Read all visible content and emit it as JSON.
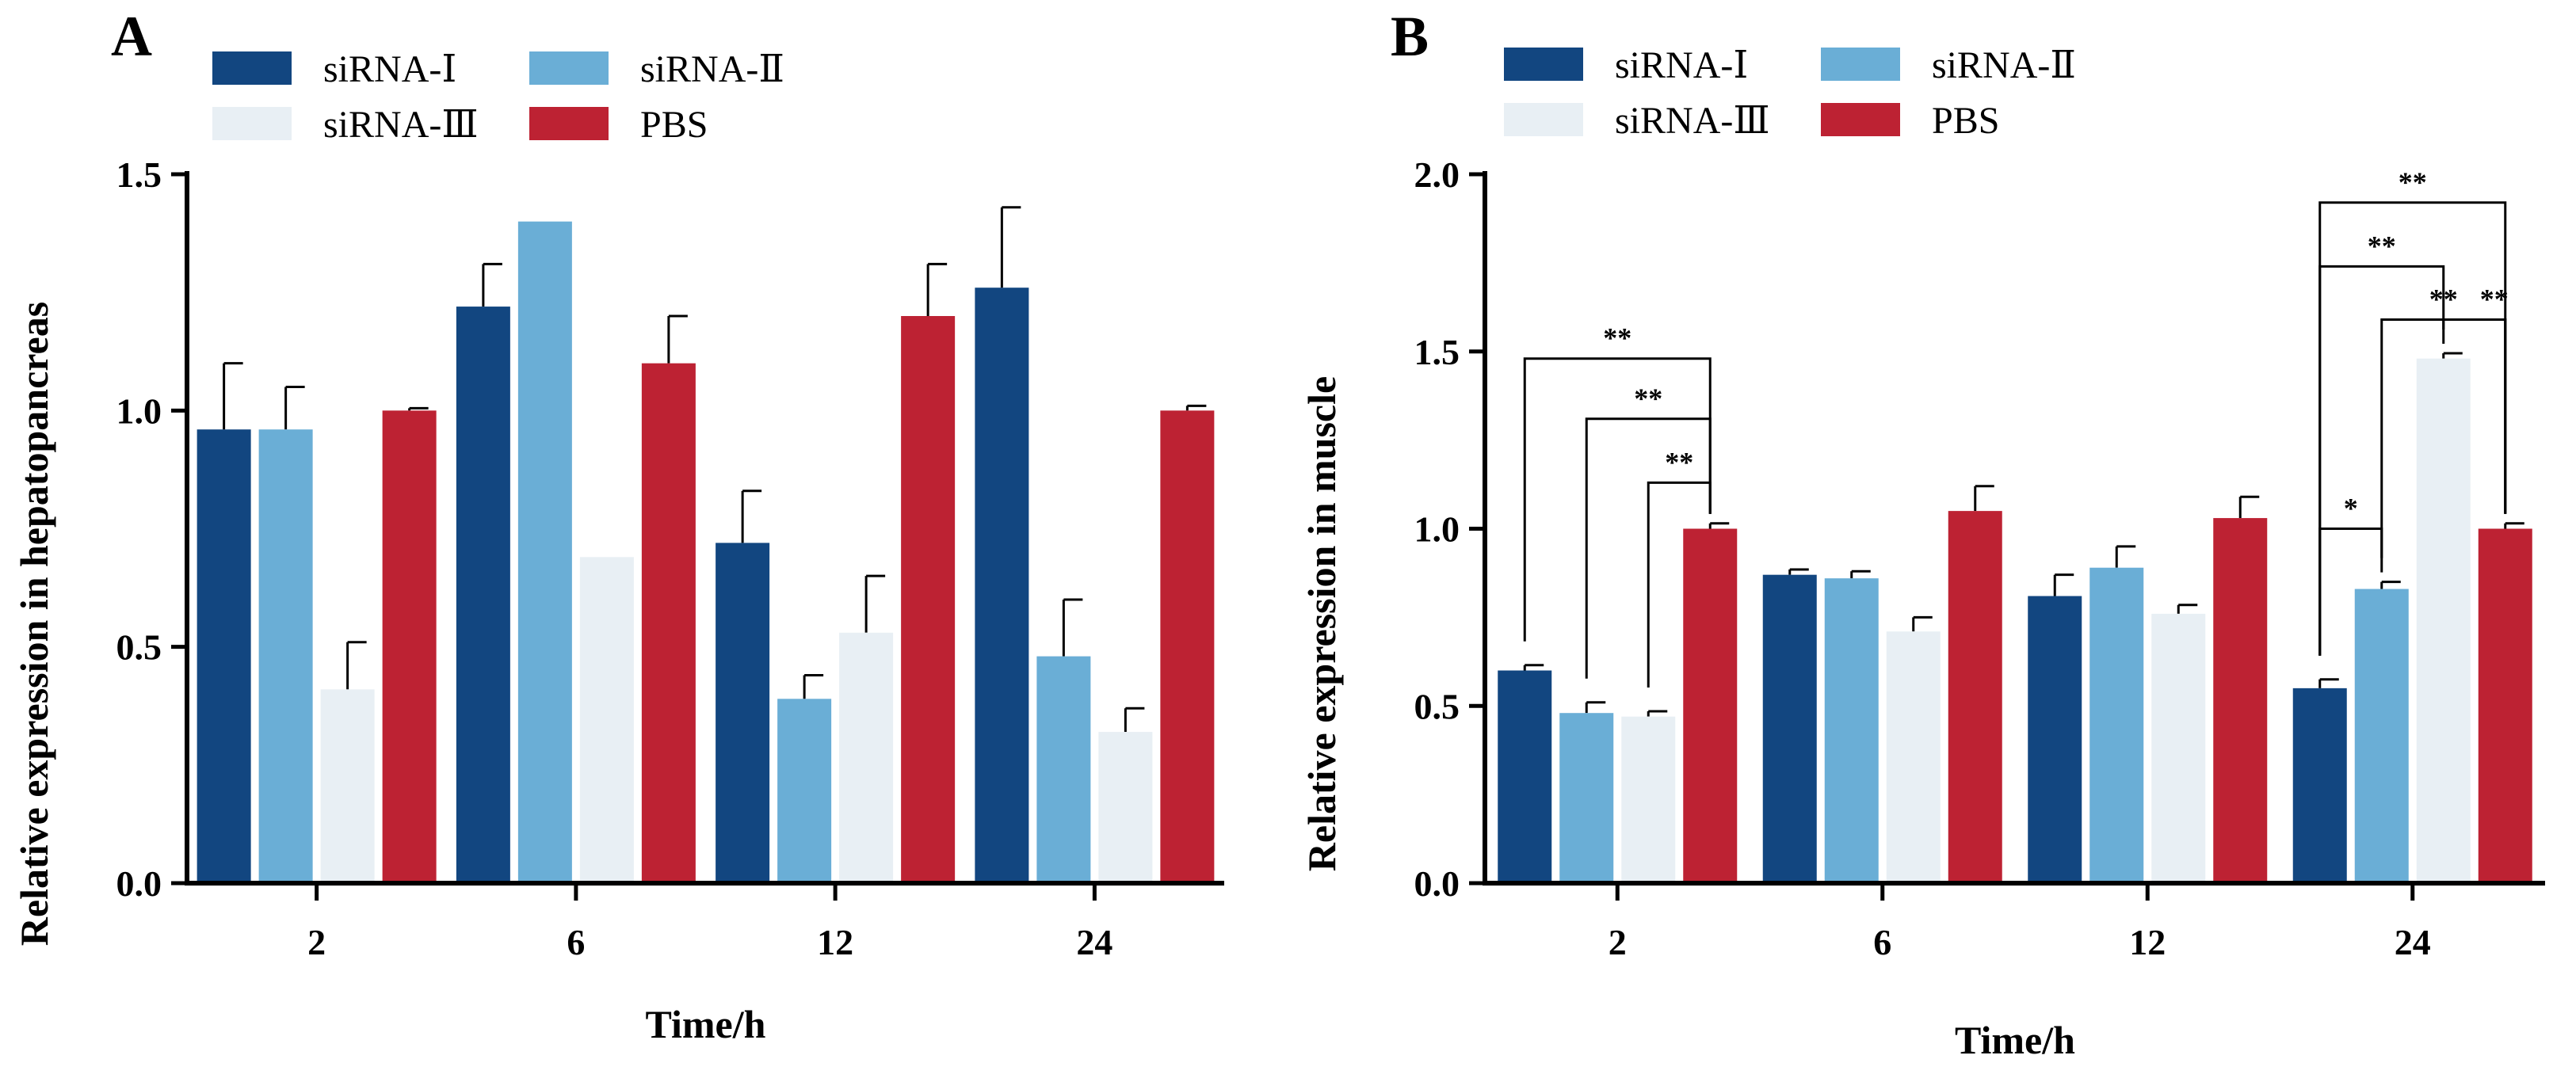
{
  "colors": {
    "siRNA-I": "#124680",
    "siRNA-II": "#6aaed6",
    "siRNA-III": "#e8eff4",
    "PBS": "#bd2233"
  },
  "chart_data": [
    {
      "panel": "A",
      "type": "bar",
      "xlabel": "Time/h",
      "ylabel": "Relative expression in hepatopancreas",
      "ylim": [
        0,
        1.5
      ],
      "yticks": [
        "0.0",
        "0.5",
        "1.0",
        "1.5"
      ],
      "categories": [
        "2",
        "6",
        "12",
        "24"
      ],
      "legend": [
        "siRNA-Ⅰ",
        "siRNA-Ⅱ",
        "siRNA-Ⅲ",
        "PBS"
      ],
      "series": [
        {
          "name": "siRNA-Ⅰ",
          "values": [
            0.96,
            1.22,
            0.72,
            1.26
          ],
          "errors": [
            0.14,
            0.09,
            0.11,
            0.17
          ]
        },
        {
          "name": "siRNA-Ⅱ",
          "values": [
            0.96,
            1.4,
            0.39,
            0.48
          ],
          "errors": [
            0.09,
            0.0,
            0.05,
            0.12
          ]
        },
        {
          "name": "siRNA-Ⅲ",
          "values": [
            0.41,
            0.69,
            0.53,
            0.32
          ],
          "errors": [
            0.1,
            0.0,
            0.12,
            0.05
          ]
        },
        {
          "name": "PBS",
          "values": [
            1.0,
            1.1,
            1.2,
            1.0
          ],
          "errors": [
            0.005,
            0.1,
            0.11,
            0.01
          ]
        }
      ],
      "significance": []
    },
    {
      "panel": "B",
      "type": "bar",
      "xlabel": "Time/h",
      "ylabel": "Relative expression in muscle",
      "ylim": [
        0,
        2.0
      ],
      "yticks": [
        "0.0",
        "0.5",
        "1.0",
        "1.5",
        "2.0"
      ],
      "categories": [
        "2",
        "6",
        "12",
        "24"
      ],
      "legend": [
        "siRNA-Ⅰ",
        "siRNA-Ⅱ",
        "siRNA-Ⅲ",
        "PBS"
      ],
      "series": [
        {
          "name": "siRNA-Ⅰ",
          "values": [
            0.6,
            0.87,
            0.81,
            0.55
          ],
          "errors": [
            0.015,
            0.015,
            0.06,
            0.025
          ]
        },
        {
          "name": "siRNA-Ⅱ",
          "values": [
            0.48,
            0.86,
            0.89,
            0.83
          ],
          "errors": [
            0.03,
            0.02,
            0.06,
            0.02
          ]
        },
        {
          "name": "siRNA-Ⅲ",
          "values": [
            0.47,
            0.71,
            0.76,
            1.48
          ],
          "errors": [
            0.015,
            0.04,
            0.025,
            0.015
          ]
        },
        {
          "name": "PBS",
          "values": [
            1.0,
            1.05,
            1.03,
            1.0
          ],
          "errors": [
            0.015,
            0.07,
            0.06,
            0.015
          ]
        }
      ],
      "significance": [
        {
          "cat": 0,
          "from": 0,
          "to": 3,
          "y": 1.48,
          "label": "**"
        },
        {
          "cat": 0,
          "from": 1,
          "to": 3,
          "y": 1.31,
          "label": "**"
        },
        {
          "cat": 0,
          "from": 2,
          "to": 3,
          "y": 1.13,
          "label": "**"
        },
        {
          "cat": 3,
          "from": 0,
          "to": 3,
          "y": 1.92,
          "label": "**"
        },
        {
          "cat": 3,
          "from": 0,
          "to": 2,
          "y": 1.74,
          "label": "**"
        },
        {
          "cat": 3,
          "from": 2,
          "to": 3,
          "y": 1.59,
          "label": "**"
        },
        {
          "cat": 3,
          "from": 1,
          "to": 3,
          "y": 1.59,
          "label": "**"
        },
        {
          "cat": 3,
          "from": 0,
          "to": 1,
          "y": 1.0,
          "label": "*"
        }
      ]
    }
  ]
}
